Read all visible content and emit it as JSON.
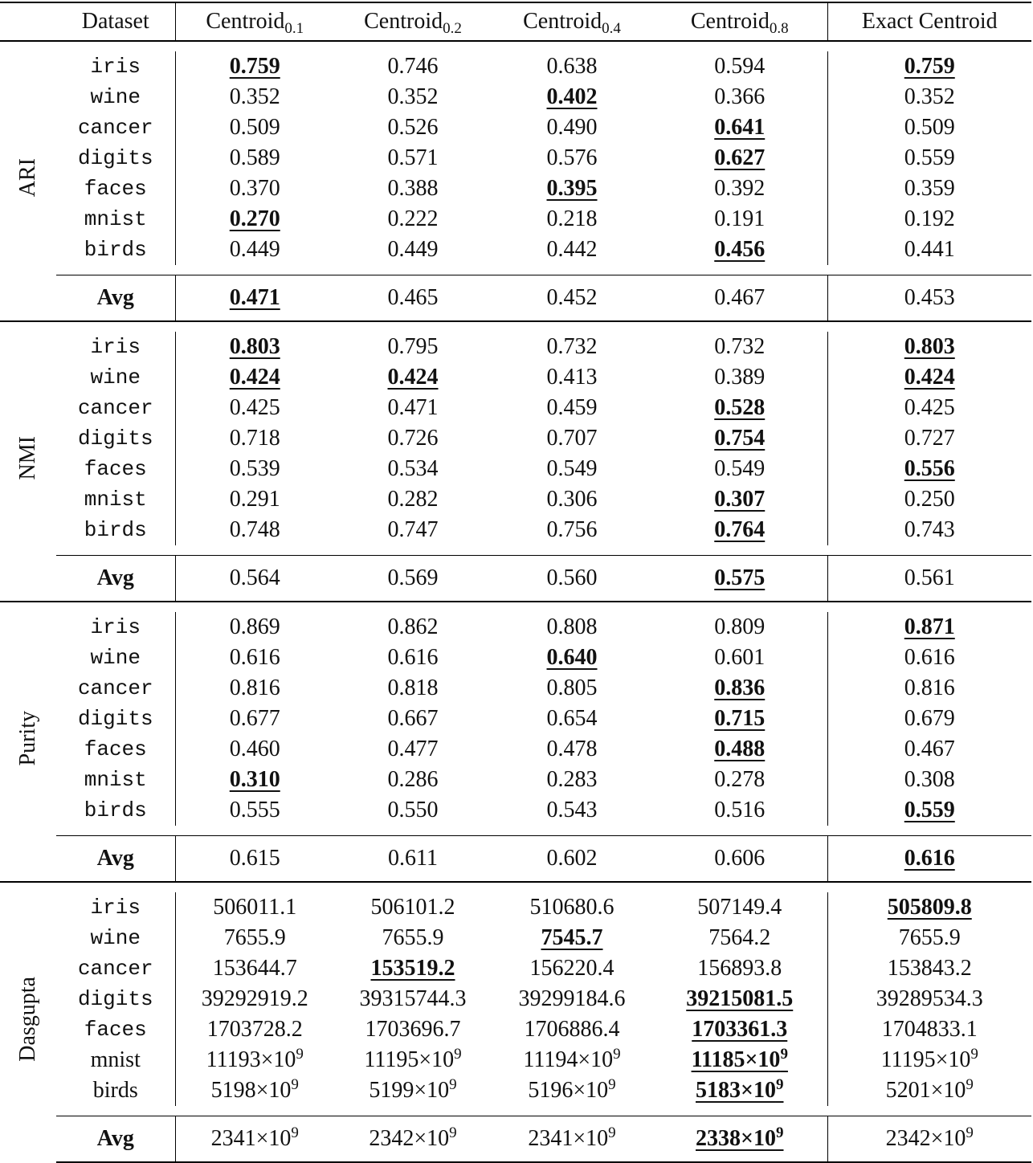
{
  "header": {
    "dataset": "Dataset",
    "columns": [
      {
        "text": "Centroid",
        "sub": "0.1"
      },
      {
        "text": "Centroid",
        "sub": "0.2"
      },
      {
        "text": "Centroid",
        "sub": "0.4"
      },
      {
        "text": "Centroid",
        "sub": "0.8"
      },
      {
        "text": "Exact Centroid"
      }
    ]
  },
  "sections": [
    {
      "metric": "ARI",
      "rows": [
        {
          "dataset": "iris",
          "values": [
            "0.759",
            "0.746",
            "0.638",
            "0.594",
            "0.759"
          ],
          "best": [
            0,
            4
          ]
        },
        {
          "dataset": "wine",
          "values": [
            "0.352",
            "0.352",
            "0.402",
            "0.366",
            "0.352"
          ],
          "best": [
            2
          ]
        },
        {
          "dataset": "cancer",
          "values": [
            "0.509",
            "0.526",
            "0.490",
            "0.641",
            "0.509"
          ],
          "best": [
            3
          ]
        },
        {
          "dataset": "digits",
          "values": [
            "0.589",
            "0.571",
            "0.576",
            "0.627",
            "0.559"
          ],
          "best": [
            3
          ]
        },
        {
          "dataset": "faces",
          "values": [
            "0.370",
            "0.388",
            "0.395",
            "0.392",
            "0.359"
          ],
          "best": [
            2
          ]
        },
        {
          "dataset": "mnist",
          "values": [
            "0.270",
            "0.222",
            "0.218",
            "0.191",
            "0.192"
          ],
          "best": [
            0
          ]
        },
        {
          "dataset": "birds",
          "values": [
            "0.449",
            "0.449",
            "0.442",
            "0.456",
            "0.441"
          ],
          "best": [
            3
          ]
        }
      ],
      "avg": {
        "label": "Avg",
        "values": [
          "0.471",
          "0.465",
          "0.452",
          "0.467",
          "0.453"
        ],
        "best": [
          0
        ]
      }
    },
    {
      "metric": "NMI",
      "rows": [
        {
          "dataset": "iris",
          "values": [
            "0.803",
            "0.795",
            "0.732",
            "0.732",
            "0.803"
          ],
          "best": [
            0,
            4
          ]
        },
        {
          "dataset": "wine",
          "values": [
            "0.424",
            "0.424",
            "0.413",
            "0.389",
            "0.424"
          ],
          "best": [
            0,
            1,
            4
          ]
        },
        {
          "dataset": "cancer",
          "values": [
            "0.425",
            "0.471",
            "0.459",
            "0.528",
            "0.425"
          ],
          "best": [
            3
          ]
        },
        {
          "dataset": "digits",
          "values": [
            "0.718",
            "0.726",
            "0.707",
            "0.754",
            "0.727"
          ],
          "best": [
            3
          ]
        },
        {
          "dataset": "faces",
          "values": [
            "0.539",
            "0.534",
            "0.549",
            "0.549",
            "0.556"
          ],
          "best": [
            4
          ]
        },
        {
          "dataset": "mnist",
          "values": [
            "0.291",
            "0.282",
            "0.306",
            "0.307",
            "0.250"
          ],
          "best": [
            3
          ]
        },
        {
          "dataset": "birds",
          "values": [
            "0.748",
            "0.747",
            "0.756",
            "0.764",
            "0.743"
          ],
          "best": [
            3
          ]
        }
      ],
      "avg": {
        "label": "Avg",
        "values": [
          "0.564",
          "0.569",
          "0.560",
          "0.575",
          "0.561"
        ],
        "best": [
          3
        ]
      }
    },
    {
      "metric": "Purity",
      "rows": [
        {
          "dataset": "iris",
          "values": [
            "0.869",
            "0.862",
            "0.808",
            "0.809",
            "0.871"
          ],
          "best": [
            4
          ]
        },
        {
          "dataset": "wine",
          "values": [
            "0.616",
            "0.616",
            "0.640",
            "0.601",
            "0.616"
          ],
          "best": [
            2
          ]
        },
        {
          "dataset": "cancer",
          "values": [
            "0.816",
            "0.818",
            "0.805",
            "0.836",
            "0.816"
          ],
          "best": [
            3
          ]
        },
        {
          "dataset": "digits",
          "values": [
            "0.677",
            "0.667",
            "0.654",
            "0.715",
            "0.679"
          ],
          "best": [
            3
          ]
        },
        {
          "dataset": "faces",
          "values": [
            "0.460",
            "0.477",
            "0.478",
            "0.488",
            "0.467"
          ],
          "best": [
            3
          ]
        },
        {
          "dataset": "mnist",
          "values": [
            "0.310",
            "0.286",
            "0.283",
            "0.278",
            "0.308"
          ],
          "best": [
            0
          ]
        },
        {
          "dataset": "birds",
          "values": [
            "0.555",
            "0.550",
            "0.543",
            "0.516",
            "0.559"
          ],
          "best": [
            4
          ]
        }
      ],
      "avg": {
        "label": "Avg",
        "values": [
          "0.615",
          "0.611",
          "0.602",
          "0.606",
          "0.616"
        ],
        "best": [
          4
        ]
      }
    },
    {
      "metric": "Dasgupta",
      "rows": [
        {
          "dataset": "iris",
          "values": [
            "506011.1",
            "506101.2",
            "510680.6",
            "507149.4",
            "505809.8"
          ],
          "best": [
            4
          ]
        },
        {
          "dataset": "wine",
          "values": [
            "7655.9",
            "7655.9",
            "7545.7",
            "7564.2",
            "7655.9"
          ],
          "best": [
            2
          ]
        },
        {
          "dataset": "cancer",
          "values": [
            "153644.7",
            "153519.2",
            "156220.4",
            "156893.8",
            "153843.2"
          ],
          "best": [
            1
          ]
        },
        {
          "dataset": "digits",
          "values": [
            "39292919.2",
            "39315744.3",
            "39299184.6",
            "39215081.5",
            "39289534.3"
          ],
          "best": [
            3
          ]
        },
        {
          "dataset": "faces",
          "values": [
            "1703728.2",
            "1703696.7",
            "1706886.4",
            "1703361.3",
            "1704833.1"
          ],
          "best": [
            3
          ]
        },
        {
          "dataset": "mnist",
          "style": "serif",
          "values": [
            {
              "text": "11193×10",
              "sup": "9"
            },
            {
              "text": "11195×10",
              "sup": "9"
            },
            {
              "text": "11194×10",
              "sup": "9"
            },
            {
              "text": "11185×10",
              "sup": "9"
            },
            {
              "text": "11195×10",
              "sup": "9"
            }
          ],
          "best": [
            3
          ]
        },
        {
          "dataset": "birds",
          "style": "serif",
          "values": [
            {
              "text": "5198×10",
              "sup": "9"
            },
            {
              "text": "5199×10",
              "sup": "9"
            },
            {
              "text": "5196×10",
              "sup": "9"
            },
            {
              "text": "5183×10",
              "sup": "9"
            },
            {
              "text": "5201×10",
              "sup": "9"
            }
          ],
          "best": [
            3
          ]
        }
      ],
      "avg": {
        "label": "Avg",
        "values": [
          {
            "text": "2341×10",
            "sup": "9"
          },
          {
            "text": "2342×10",
            "sup": "9"
          },
          {
            "text": "2341×10",
            "sup": "9"
          },
          {
            "text": "2338×10",
            "sup": "9"
          },
          {
            "text": "2342×10",
            "sup": "9"
          }
        ],
        "best": [
          3
        ]
      }
    }
  ]
}
